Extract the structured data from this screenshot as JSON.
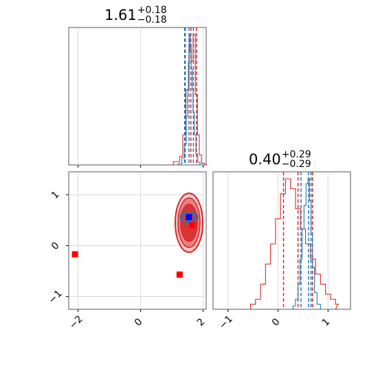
{
  "chart_data": [
    {
      "type": "histogram",
      "panel": "top-left",
      "title": "1.61",
      "title_plus": "+0.18",
      "title_minus": "−0.18",
      "xlim": [
        -2.3,
        2.1
      ],
      "series": [
        {
          "color": "#d62728",
          "step_x": [
            1.05,
            1.25,
            1.35,
            1.45,
            1.55,
            1.62,
            1.68,
            1.75,
            1.82,
            1.88,
            1.95,
            2.05
          ],
          "step_y": [
            0.02,
            0.05,
            0.18,
            0.45,
            0.72,
            0.62,
            0.78,
            0.42,
            0.18,
            0.06,
            0.01,
            0.0
          ],
          "quantile_lines": [
            1.43,
            1.61,
            1.79
          ]
        },
        {
          "color": "#1f77b4",
          "step_x": [
            1.2,
            1.32,
            1.4,
            1.46,
            1.5,
            1.53,
            1.56,
            1.59,
            1.62,
            1.65,
            1.68,
            1.72,
            1.77,
            1.83,
            1.9
          ],
          "step_y": [
            0.01,
            0.05,
            0.15,
            0.35,
            0.55,
            0.75,
            0.95,
            0.82,
            0.7,
            0.55,
            0.38,
            0.22,
            0.08,
            0.02,
            0.0
          ],
          "quantile_lines": [
            1.41,
            1.55,
            1.69
          ]
        }
      ]
    },
    {
      "type": "histogram",
      "panel": "bottom-right",
      "title": "0.40",
      "title_plus": "+0.29",
      "title_minus": "−0.29",
      "xlim": [
        -1.3,
        1.45
      ],
      "series": [
        {
          "color": "#d62728",
          "step_x": [
            -0.55,
            -0.45,
            -0.35,
            -0.25,
            -0.15,
            -0.05,
            0.05,
            0.15,
            0.25,
            0.35,
            0.45,
            0.55,
            0.65,
            0.75,
            0.85,
            0.95,
            1.05,
            1.15
          ],
          "step_y": [
            0.01,
            0.02,
            0.05,
            0.09,
            0.13,
            0.18,
            0.23,
            0.26,
            0.24,
            0.2,
            0.16,
            0.13,
            0.1,
            0.07,
            0.05,
            0.03,
            0.02,
            0.01
          ],
          "quantile_lines": [
            0.11,
            0.4,
            0.69
          ]
        },
        {
          "color": "#1f77b4",
          "step_x": [
            0.3,
            0.35,
            0.4,
            0.44,
            0.48,
            0.52,
            0.56,
            0.6,
            0.63,
            0.66,
            0.69,
            0.73,
            0.78,
            0.85
          ],
          "step_y": [
            0.02,
            0.06,
            0.15,
            0.3,
            0.48,
            0.62,
            0.75,
            0.78,
            0.65,
            0.45,
            0.25,
            0.1,
            0.03,
            0.0
          ],
          "quantile_lines": [
            0.46,
            0.61,
            0.66
          ]
        }
      ]
    },
    {
      "type": "scatter",
      "panel": "bottom-left",
      "xlim": [
        -2.3,
        2.1
      ],
      "ylim": [
        -1.25,
        1.45
      ],
      "contour_center": [
        1.55,
        0.45
      ],
      "red_markers": [
        [
          -2.1,
          -0.17
        ],
        [
          1.25,
          -0.57
        ],
        [
          1.65,
          0.4
        ]
      ],
      "blue_marker": [
        1.55,
        0.56
      ]
    }
  ],
  "axes": {
    "x1_ticks": [
      "−2",
      "0",
      "2"
    ],
    "x1_values": [
      -2,
      0,
      2
    ],
    "y1_ticks": [
      "−1",
      "0",
      "1"
    ],
    "y1_values": [
      -1,
      0,
      1
    ],
    "x2_ticks": [
      "−1",
      "0",
      "1"
    ],
    "x2_values": [
      -1,
      0,
      1
    ]
  },
  "colors": {
    "red": "#d62728",
    "blue": "#1f77b4",
    "marker_red": "#ff0000",
    "marker_blue": "#0000ff"
  }
}
